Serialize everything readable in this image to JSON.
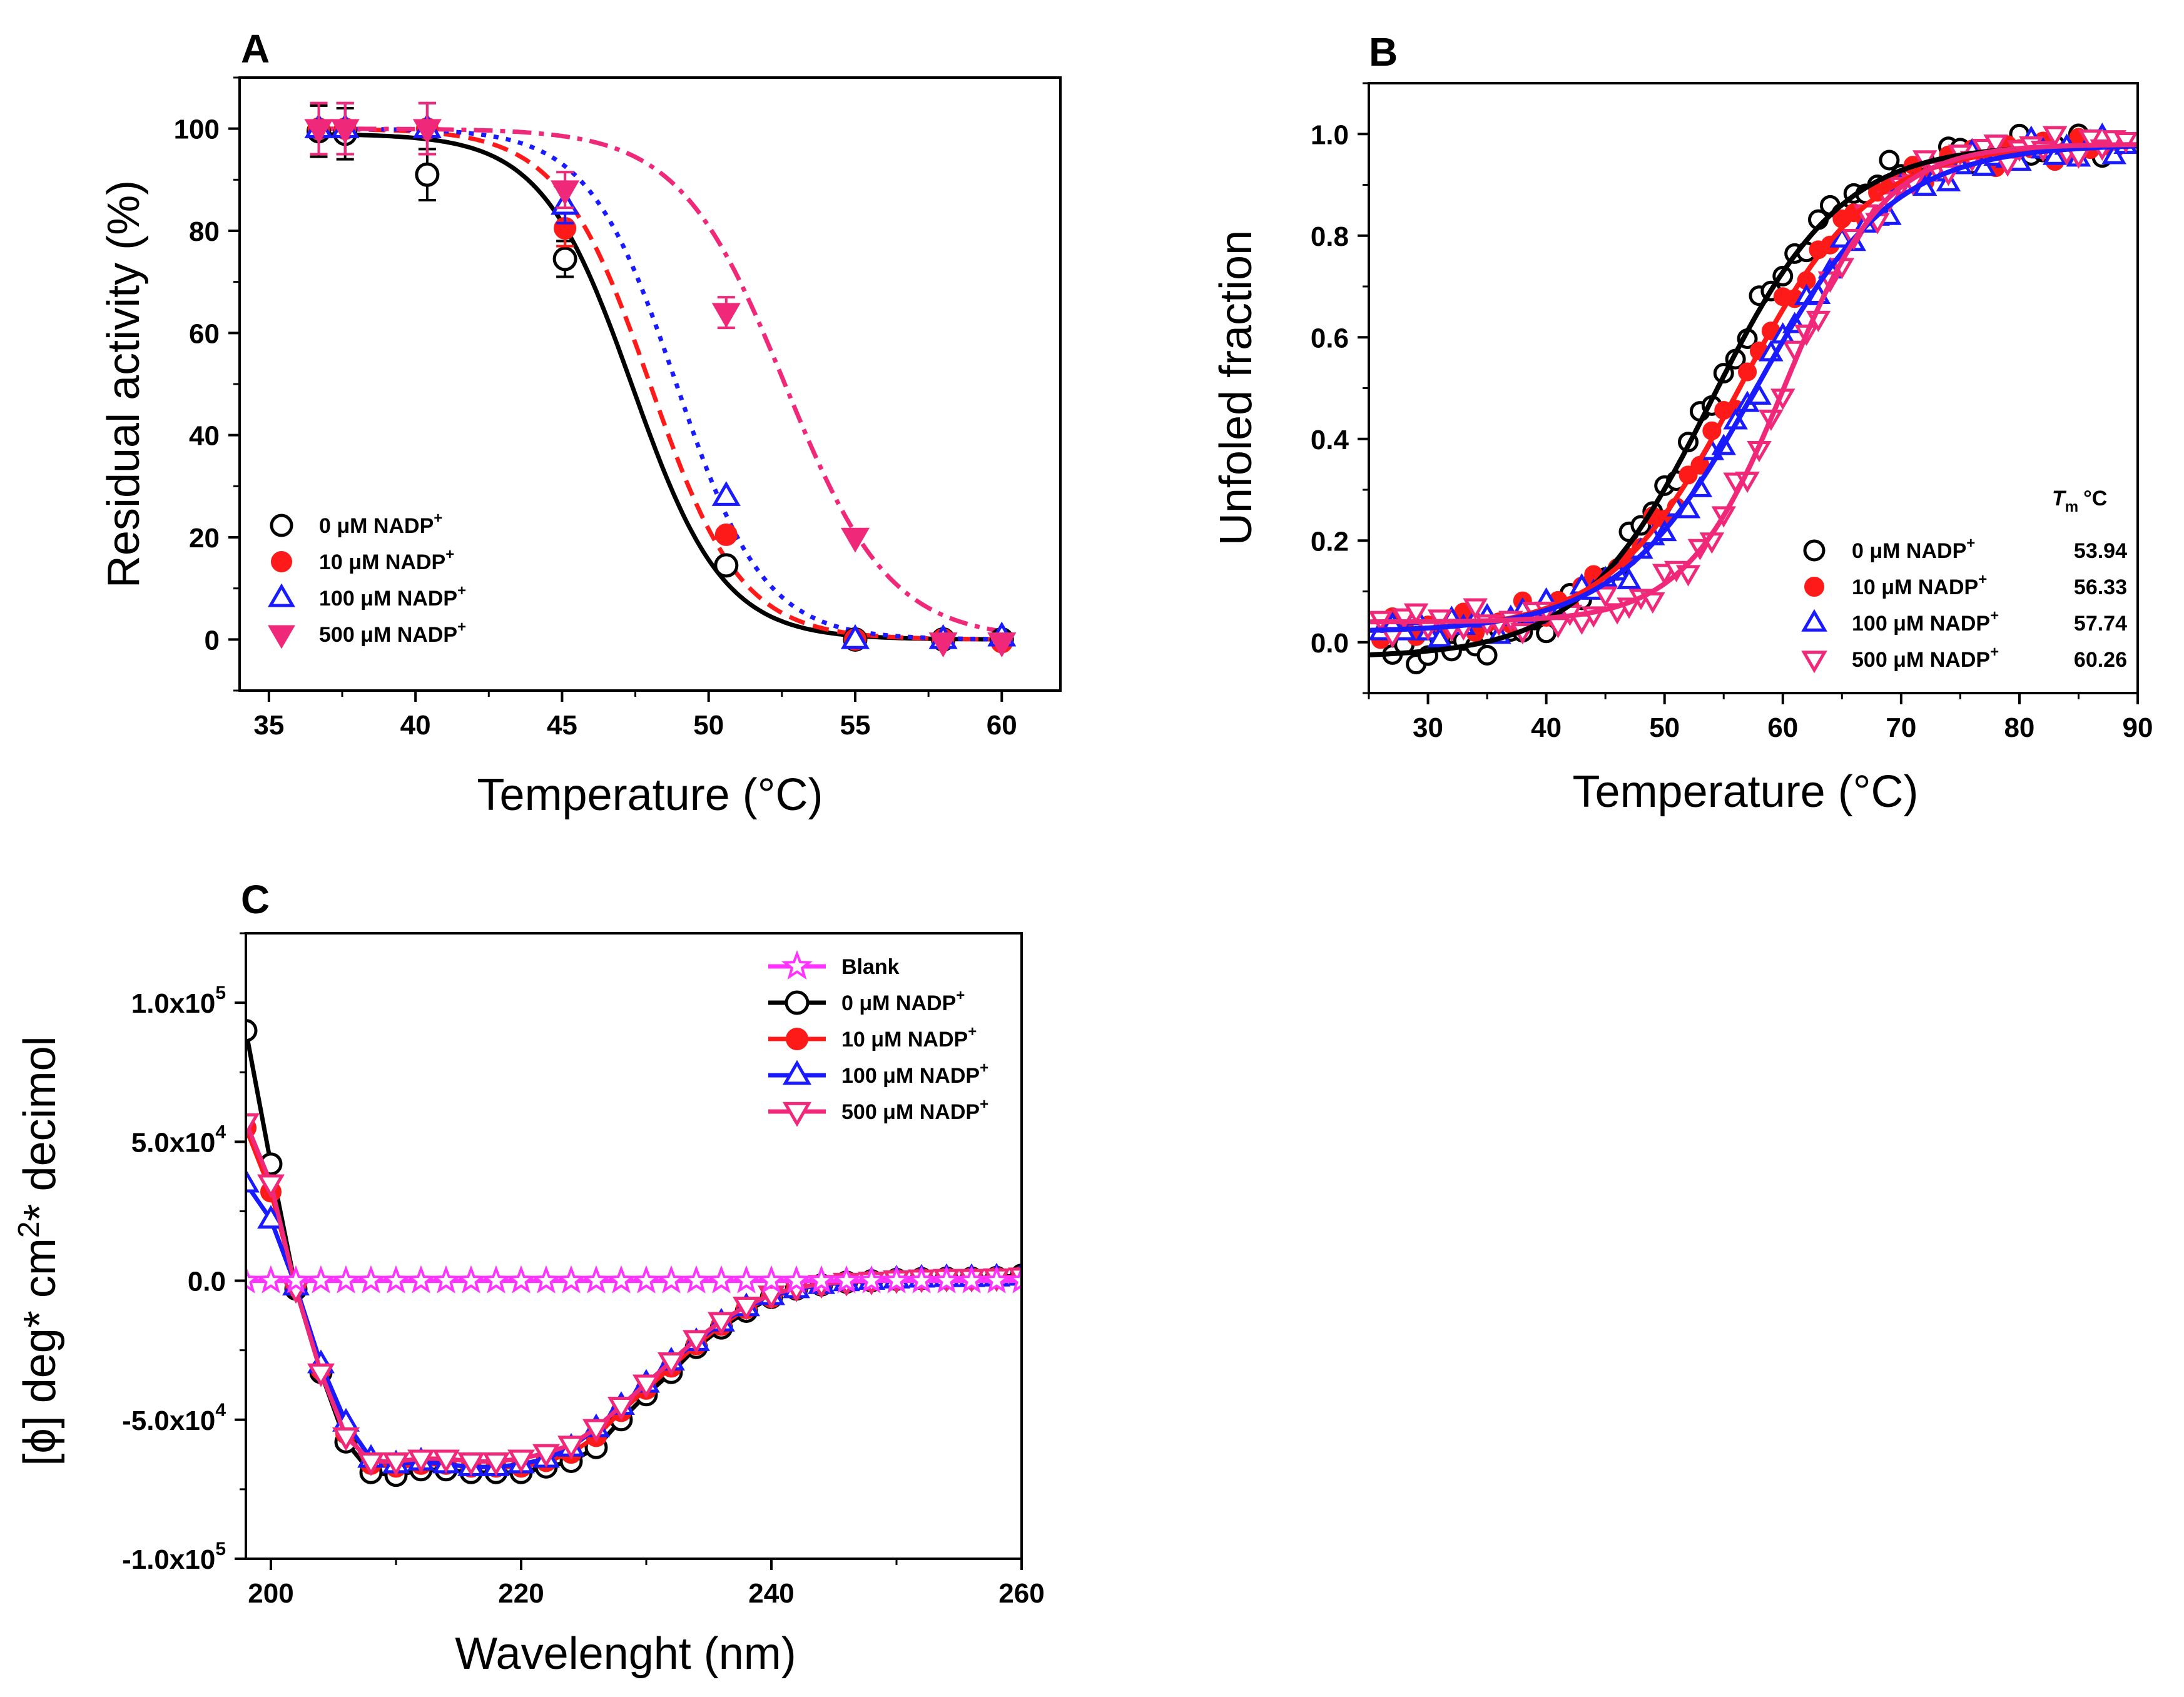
{
  "figure": {
    "panel_letters": [
      "A",
      "B",
      "C"
    ]
  },
  "chart_data": [
    {
      "panel": "A",
      "type": "scatter",
      "xlabel": "Temperature (°C)",
      "ylabel": "Residual activity (%)",
      "xlim": [
        34,
        62
      ],
      "ylim": [
        -10,
        110
      ],
      "xticks": [
        35,
        40,
        45,
        50,
        55,
        60
      ],
      "yticks": [
        0,
        20,
        40,
        60,
        80,
        100
      ],
      "legend_position": "bottom-left",
      "series": [
        {
          "name": "0 μM NADP⁺",
          "label_main": "0 μM NADP",
          "label_sup": "+",
          "color": "#000000",
          "marker": "circle-open",
          "line": "solid",
          "fit": {
            "tm": 47.4,
            "k": 1.55,
            "top": 99
          },
          "points": [
            [
              36.7,
              99.5
            ],
            [
              37.6,
              99
            ],
            [
              40.4,
              91
            ],
            [
              45.1,
              74.5
            ],
            [
              50.6,
              14.5
            ],
            [
              55.0,
              0
            ],
            [
              58.0,
              0
            ],
            [
              60.0,
              0
            ]
          ],
          "errors": [
            5,
            5,
            5,
            3.5,
            1.5,
            0,
            0,
            0
          ]
        },
        {
          "name": "10 μM NADP⁺",
          "label_main": "10 μM NADP",
          "label_sup": "+",
          "color": "#ff1a1a",
          "marker": "circle-filled",
          "line": "dash",
          "fit": {
            "tm": 48.0,
            "k": 1.55,
            "top": 100
          },
          "points": [
            [
              36.7,
              100
            ],
            [
              37.6,
              100
            ],
            [
              40.4,
              100
            ],
            [
              45.1,
              80.5
            ],
            [
              50.6,
              20.5
            ],
            [
              55.0,
              0
            ],
            [
              58.0,
              0
            ],
            [
              60.0,
              -0.5
            ]
          ],
          "errors": [
            5,
            5,
            5,
            3.5,
            0,
            0,
            0,
            0
          ]
        },
        {
          "name": "100 μM NADP⁺",
          "label_main": "100 μM NADP",
          "label_sup": "+",
          "color": "#1a1aff",
          "marker": "triangle-up-open",
          "line": "dot",
          "fit": {
            "tm": 48.9,
            "k": 1.5,
            "top": 100
          },
          "points": [
            [
              36.7,
              100
            ],
            [
              37.6,
              100
            ],
            [
              40.4,
              100
            ],
            [
              45.1,
              85
            ],
            [
              50.6,
              28
            ],
            [
              55.0,
              0
            ],
            [
              58.0,
              0
            ],
            [
              60.0,
              0.5
            ]
          ],
          "errors": [
            5,
            5,
            5,
            3.5,
            0,
            0,
            0,
            0
          ]
        },
        {
          "name": "500 μM NADP⁺",
          "label_main": "500 μM NADP",
          "label_sup": "+",
          "color": "#f0287a",
          "marker": "triangle-down-filled",
          "line": "dashdot",
          "fit": {
            "tm": 52.6,
            "k": 1.8,
            "top": 100
          },
          "points": [
            [
              36.7,
              100
            ],
            [
              37.6,
              100
            ],
            [
              40.4,
              100
            ],
            [
              45.1,
              88
            ],
            [
              50.6,
              64
            ],
            [
              55.0,
              20
            ],
            [
              58.0,
              -0.5
            ],
            [
              60.0,
              -0.5
            ]
          ],
          "errors": [
            5,
            5,
            5,
            3.5,
            3,
            0,
            0,
            0
          ]
        }
      ]
    },
    {
      "panel": "B",
      "type": "scatter",
      "xlabel": "Temperature (°C)",
      "ylabel": "Unfoled fraction",
      "xlim": [
        25,
        90
      ],
      "ylim": [
        -0.1,
        1.1
      ],
      "xticks": [
        30,
        40,
        50,
        60,
        70,
        80,
        90
      ],
      "yticks": [
        0.0,
        0.2,
        0.4,
        0.6,
        0.8,
        1.0
      ],
      "legend_position": "bottom-right",
      "legend_header_symbol": "T",
      "legend_header_sub": "m",
      "legend_header_unit": "°C",
      "series": [
        {
          "name": "0 μM NADP⁺",
          "label_main": "0 μM NADP",
          "label_sup": "+",
          "tm": 53.94,
          "tm_label": "53.94",
          "color": "#000000",
          "marker": "circle-open",
          "fit": {
            "tm": 53.94,
            "k": 5.5,
            "bottom": -0.03,
            "top": 0.98
          },
          "x_range": [
            27,
            87
          ],
          "step": 1.0
        },
        {
          "name": "10 μM NADP⁺",
          "label_main": "10 μM NADP",
          "label_sup": "+",
          "tm": 56.33,
          "tm_label": "56.33",
          "color": "#ff1a1a",
          "marker": "circle-filled",
          "fit": {
            "tm": 56.33,
            "k": 5.5,
            "bottom": 0.02,
            "top": 0.98
          },
          "x_range": [
            26,
            88
          ],
          "step": 1.0
        },
        {
          "name": "100 μM NADP⁺",
          "label_main": "100 μM NADP",
          "label_sup": "+",
          "tm": 57.74,
          "tm_label": "57.74",
          "color": "#1a1aff",
          "marker": "triangle-up-open",
          "fit": {
            "tm": 57.74,
            "k": 5.8,
            "bottom": 0.02,
            "top": 0.98
          },
          "x_range": [
            26,
            89
          ],
          "step": 1.0
        },
        {
          "name": "500 μM NADP⁺",
          "label_main": "500 μM NADP",
          "label_sup": "+",
          "tm": 60.26,
          "tm_label": "60.26",
          "color": "#f0287a",
          "marker": "triangle-down-open",
          "fit": {
            "tm": 60.26,
            "k": 4.2,
            "bottom": 0.04,
            "top": 0.98
          },
          "x_range": [
            26,
            89
          ],
          "step": 1.0
        }
      ]
    },
    {
      "panel": "C",
      "type": "line",
      "xlabel": "Wavelenght (nm)",
      "ylabel_parts": [
        "[",
        "ϕ",
        "] deg* cm",
        "2",
        "* decimol"
      ],
      "xlim": [
        198,
        260
      ],
      "ylim": [
        -100000,
        125000
      ],
      "xticks": [
        200,
        220,
        240,
        260
      ],
      "yticks": [
        -100000,
        -50000,
        0,
        50000,
        100000
      ],
      "ytick_labels": [
        {
          "mantissa": "-1.0x10",
          "exp": "5"
        },
        {
          "mantissa": "-5.0x10",
          "exp": "4"
        },
        {
          "mantissa": "0.0",
          "exp": ""
        },
        {
          "mantissa": "5.0x10",
          "exp": "4"
        },
        {
          "mantissa": "1.0x10",
          "exp": "5"
        }
      ],
      "legend_position": "top-right",
      "series": [
        {
          "name": "Blank",
          "label_main": "Blank",
          "label_sup": "",
          "color": "#ff33ff",
          "marker": "star",
          "x": [
            198,
            200,
            202,
            204,
            206,
            208,
            210,
            212,
            214,
            216,
            218,
            220,
            222,
            224,
            226,
            228,
            230,
            232,
            234,
            236,
            238,
            240,
            242,
            244,
            246,
            248,
            250,
            252,
            254,
            256,
            258,
            260
          ],
          "y": [
            0,
            0,
            0,
            0,
            0,
            0,
            0,
            0,
            0,
            0,
            0,
            0,
            0,
            0,
            0,
            0,
            0,
            0,
            0,
            0,
            0,
            0,
            0,
            0,
            0,
            0,
            0,
            0,
            0,
            0,
            0,
            0
          ]
        },
        {
          "name": "0 μM NADP⁺",
          "label_main": "0 μM NADP",
          "label_sup": "+",
          "color": "#000000",
          "marker": "circle-open",
          "x": [
            198,
            200,
            202,
            204,
            206,
            208,
            210,
            212,
            214,
            216,
            218,
            220,
            222,
            224,
            226,
            228,
            230,
            232,
            234,
            236,
            238,
            240,
            242,
            244,
            246,
            248,
            250,
            252,
            254,
            256,
            258,
            260
          ],
          "y": [
            90000,
            42000,
            -3000,
            -33000,
            -58000,
            -69000,
            -70000,
            -68000,
            -68000,
            -69000,
            -69000,
            -69000,
            -67000,
            -65000,
            -60000,
            -50000,
            -41000,
            -33000,
            -24000,
            -17000,
            -11000,
            -6000,
            -3000,
            -1500,
            -500,
            0,
            500,
            800,
            1000,
            1000,
            1200,
            2000
          ]
        },
        {
          "name": "10 μM NADP⁺",
          "label_main": "10 μM NADP",
          "label_sup": "+",
          "color": "#ff1a1a",
          "marker": "circle-filled",
          "x": [
            198,
            200,
            202,
            204,
            206,
            208,
            210,
            212,
            214,
            216,
            218,
            220,
            222,
            224,
            226,
            228,
            230,
            232,
            234,
            236,
            238,
            240,
            242,
            244,
            246,
            248,
            250,
            252,
            254,
            256,
            258,
            260
          ],
          "y": [
            55000,
            32000,
            -2000,
            -32000,
            -55000,
            -66000,
            -67000,
            -66000,
            -66000,
            -67000,
            -67000,
            -67000,
            -65000,
            -62000,
            -56000,
            -47000,
            -39000,
            -31000,
            -23000,
            -16000,
            -10000,
            -6000,
            -3000,
            -1500,
            -500,
            0,
            500,
            800,
            1000,
            1000,
            1200,
            1500
          ]
        },
        {
          "name": "100 μM NADP⁺",
          "label_main": "100 μM NADP",
          "label_sup": "+",
          "color": "#1a1aff",
          "marker": "triangle-up-open",
          "x": [
            198,
            200,
            202,
            204,
            206,
            208,
            210,
            212,
            214,
            216,
            218,
            220,
            222,
            224,
            226,
            228,
            230,
            232,
            234,
            236,
            238,
            240,
            242,
            244,
            246,
            248,
            250,
            252,
            254,
            256,
            258,
            260
          ],
          "y": [
            35000,
            22000,
            -2000,
            -30000,
            -51000,
            -64000,
            -66000,
            -65000,
            -66000,
            -67000,
            -67000,
            -66000,
            -64000,
            -60000,
            -53000,
            -45000,
            -37000,
            -29000,
            -22000,
            -15000,
            -9500,
            -5500,
            -3000,
            -1500,
            -500,
            0,
            500,
            800,
            1000,
            1000,
            1200,
            1500
          ]
        },
        {
          "name": "500 μM NADP⁺",
          "label_main": "500 μM NADP",
          "label_sup": "+",
          "color": "#f0287a",
          "marker": "triangle-down-open",
          "x": [
            198,
            200,
            202,
            204,
            206,
            208,
            210,
            212,
            214,
            216,
            218,
            220,
            222,
            224,
            226,
            228,
            230,
            232,
            234,
            236,
            238,
            240,
            242,
            244,
            246,
            248,
            250,
            252,
            254,
            256,
            258,
            260
          ],
          "y": [
            57000,
            35000,
            -3000,
            -33000,
            -56000,
            -65000,
            -65000,
            -64000,
            -64000,
            -65000,
            -65000,
            -64000,
            -62000,
            -59000,
            -53000,
            -45000,
            -37000,
            -29000,
            -21000,
            -14500,
            -9000,
            -5000,
            -2500,
            -1200,
            -400,
            0,
            500,
            800,
            1000,
            1000,
            1200,
            1500
          ]
        }
      ]
    }
  ]
}
